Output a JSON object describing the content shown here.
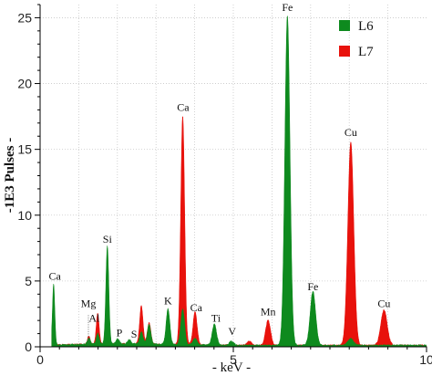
{
  "chart_data": {
    "type": "area",
    "xlabel": "- keV -",
    "ylabel": "-1E3  Pulses -",
    "xlim": [
      0,
      10
    ],
    "ylim": [
      0,
      26
    ],
    "x_ticks": [
      "0",
      "5",
      "10"
    ],
    "y_ticks": [
      "0",
      "5",
      "10",
      "15",
      "20",
      "25"
    ],
    "grid": true,
    "legend_position": "top-right",
    "series": [
      {
        "name": "L7",
        "color": "#e8120c",
        "peaks": [
          {
            "x": 0.35,
            "y": 2.9
          },
          {
            "x": 1.26,
            "y": 0.6
          },
          {
            "x": 1.49,
            "y": 2.3
          },
          {
            "x": 1.74,
            "y": 3.8
          },
          {
            "x": 2.62,
            "y": 2.9
          },
          {
            "x": 2.82,
            "y": 1.6
          },
          {
            "x": 3.31,
            "y": 1.3
          },
          {
            "x": 3.69,
            "y": 17.4
          },
          {
            "x": 4.01,
            "y": 2.5
          },
          {
            "x": 4.51,
            "y": 0.6
          },
          {
            "x": 5.41,
            "y": 0.3
          },
          {
            "x": 5.9,
            "y": 1.9
          },
          {
            "x": 6.4,
            "y": 3.6
          },
          {
            "x": 7.06,
            "y": 0.9
          },
          {
            "x": 8.04,
            "y": 15.5
          },
          {
            "x": 8.9,
            "y": 2.7
          }
        ]
      },
      {
        "name": "L6",
        "color": "#0e8a1e",
        "peaks": [
          {
            "x": 0.35,
            "y": 4.6
          },
          {
            "x": 1.26,
            "y": 0.5
          },
          {
            "x": 1.49,
            "y": 0.8
          },
          {
            "x": 1.74,
            "y": 7.4
          },
          {
            "x": 2.01,
            "y": 0.4
          },
          {
            "x": 2.31,
            "y": 0.3
          },
          {
            "x": 2.62,
            "y": 0.9
          },
          {
            "x": 2.82,
            "y": 1.5
          },
          {
            "x": 3.31,
            "y": 2.7
          },
          {
            "x": 3.69,
            "y": 2.7
          },
          {
            "x": 4.01,
            "y": 0.5
          },
          {
            "x": 4.51,
            "y": 1.6
          },
          {
            "x": 4.95,
            "y": 0.3
          },
          {
            "x": 6.4,
            "y": 25.0
          },
          {
            "x": 7.06,
            "y": 4.1
          },
          {
            "x": 8.04,
            "y": 0.5
          }
        ]
      }
    ],
    "annotations": [
      {
        "text": "Ca",
        "x": 0.38,
        "y": 4.9
      },
      {
        "text": "Mg",
        "x": 1.25,
        "y": 2.8
      },
      {
        "text": "Al",
        "x": 1.4,
        "y": 1.7
      },
      {
        "text": "Si",
        "x": 1.74,
        "y": 7.7
      },
      {
        "text": "P",
        "x": 2.05,
        "y": 0.6
      },
      {
        "text": "S",
        "x": 2.43,
        "y": 0.5
      },
      {
        "text": "K",
        "x": 3.31,
        "y": 3.0
      },
      {
        "text": "Ca",
        "x": 3.7,
        "y": 17.7
      },
      {
        "text": "Ca",
        "x": 4.04,
        "y": 2.5
      },
      {
        "text": "Ti",
        "x": 4.55,
        "y": 1.7
      },
      {
        "text": "V",
        "x": 4.97,
        "y": 0.7
      },
      {
        "text": "Mn",
        "x": 5.9,
        "y": 2.2
      },
      {
        "text": "Fe",
        "x": 6.4,
        "y": 25.3
      },
      {
        "text": "Fe",
        "x": 7.06,
        "y": 4.1
      },
      {
        "text": "Cu",
        "x": 8.04,
        "y": 15.8
      },
      {
        "text": "Cu",
        "x": 8.9,
        "y": 2.8
      }
    ]
  }
}
